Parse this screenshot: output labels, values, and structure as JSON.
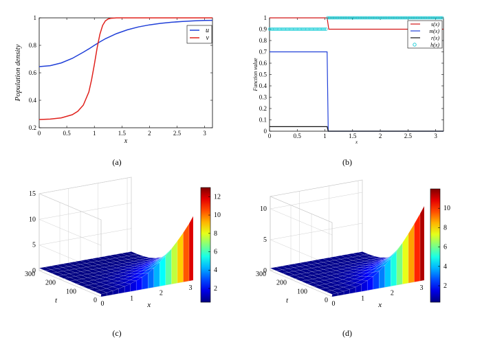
{
  "chart_data": [
    {
      "panel": "a",
      "type": "line",
      "caption": "(a)",
      "xlabel": "x",
      "ylabel": "Population  density",
      "xlim": [
        0,
        3.14159
      ],
      "ylim": [
        0.2,
        1.0
      ],
      "xticks": [
        "0",
        "0.5",
        "1",
        "1.5",
        "2",
        "2.5",
        "3"
      ],
      "xtick_values": [
        0,
        0.5,
        1,
        1.5,
        2,
        2.5,
        3
      ],
      "yticks": [
        "0.2",
        "0.4",
        "0.6",
        "0.8",
        "1"
      ],
      "ytick_values": [
        0.2,
        0.4,
        0.6,
        0.8,
        1.0
      ],
      "legend": [
        "u",
        "v"
      ],
      "series": [
        {
          "name": "u",
          "color": "#1f3fd8",
          "x": [
            0,
            0.2,
            0.4,
            0.6,
            0.8,
            0.9,
            1.0,
            1.1,
            1.2,
            1.4,
            1.6,
            1.8,
            2.0,
            2.2,
            2.4,
            2.6,
            2.8,
            3.0,
            3.14
          ],
          "y": [
            0.645,
            0.652,
            0.672,
            0.705,
            0.75,
            0.774,
            0.8,
            0.825,
            0.848,
            0.885,
            0.913,
            0.934,
            0.949,
            0.96,
            0.968,
            0.974,
            0.978,
            0.981,
            0.982
          ]
        },
        {
          "name": "v",
          "color": "#e0201b",
          "x": [
            0,
            0.2,
            0.4,
            0.6,
            0.7,
            0.8,
            0.9,
            0.95,
            1.0,
            1.05,
            1.1,
            1.15,
            1.2,
            1.25,
            1.3,
            1.4,
            1.6,
            2.0,
            2.5,
            3.14
          ],
          "y": [
            0.26,
            0.263,
            0.272,
            0.295,
            0.32,
            0.365,
            0.46,
            0.55,
            0.66,
            0.78,
            0.88,
            0.945,
            0.978,
            0.992,
            0.997,
            1.0,
            1.0,
            1.0,
            1.0,
            1.0
          ]
        }
      ]
    },
    {
      "panel": "b",
      "type": "line",
      "caption": "(b)",
      "xlabel": "x",
      "ylabel": "Function  value",
      "xlim": [
        0,
        3.14159
      ],
      "ylim": [
        0,
        1.0
      ],
      "xticks": [
        "0",
        "0.5",
        "1",
        "1.5",
        "2",
        "2.5",
        "3"
      ],
      "xtick_values": [
        0,
        0.5,
        1,
        1.5,
        2,
        2.5,
        3
      ],
      "yticks": [
        "0",
        "0.1",
        "0.2",
        "0.3",
        "0.4",
        "0.5",
        "0.6",
        "0.7",
        "0.8",
        "0.9",
        "1"
      ],
      "ytick_values": [
        0,
        0.1,
        0.2,
        0.3,
        0.4,
        0.5,
        0.6,
        0.7,
        0.8,
        0.9,
        1.0
      ],
      "legend": [
        "s(x)",
        "m(x)",
        "r(x)",
        "h(x)"
      ],
      "series": [
        {
          "name": "s(x)",
          "color": "#d21414",
          "style": "line",
          "x": [
            0,
            1.04,
            1.07,
            3.14
          ],
          "y": [
            1.0,
            1.0,
            0.9,
            0.9
          ]
        },
        {
          "name": "m(x)",
          "color": "#1f3fd8",
          "style": "line",
          "x": [
            0,
            1.04,
            1.06,
            3.14
          ],
          "y": [
            0.7,
            0.7,
            0.0,
            0.0
          ]
        },
        {
          "name": "r(x)",
          "color": "#111111",
          "style": "line",
          "x": [
            0,
            1.04,
            1.06,
            3.14
          ],
          "y": [
            0.04,
            0.04,
            0.0,
            0.0
          ]
        },
        {
          "name": "h(x)",
          "color": "#22cfd8",
          "style": "markers",
          "x_start": 0,
          "x_end": 3.14,
          "x_step": 0.03,
          "jump_at": 1.05,
          "y_before": 0.9,
          "y_after": 1.0
        }
      ]
    },
    {
      "panel": "c",
      "type": "surface",
      "caption": "(c)",
      "xlabel": "x",
      "ylabel": "t",
      "xlim": [
        0,
        3.14
      ],
      "tlim": [
        0,
        300
      ],
      "zlim": [
        0,
        15
      ],
      "xticks": [
        "0",
        "1",
        "2",
        "3"
      ],
      "xtick_values": [
        0,
        1,
        2,
        3
      ],
      "tticks": [
        "0",
        "100",
        "200",
        "300"
      ],
      "ttick_values": [
        0,
        100,
        200,
        300
      ],
      "zticks": [
        "0",
        "5",
        "10",
        "15"
      ],
      "ztick_values": [
        0,
        5,
        10,
        15
      ],
      "colorbar_ticks": [
        "2",
        "4",
        "6",
        "8",
        "10",
        "12"
      ],
      "colorbar_values": [
        2,
        4,
        6,
        8,
        10,
        12
      ],
      "colorbar_range": [
        0.5,
        13
      ],
      "x_samples": [
        0,
        0.2,
        0.4,
        0.6,
        0.8,
        1.0,
        1.2,
        1.4,
        1.6,
        1.8,
        2.0,
        2.2,
        2.4,
        2.6,
        2.8,
        3.0,
        3.14
      ],
      "z_at_t0": [
        0.5,
        0.6,
        0.75,
        0.95,
        1.2,
        1.5,
        1.9,
        2.4,
        3.0,
        3.8,
        4.7,
        5.7,
        6.9,
        8.2,
        9.6,
        11.2,
        12.5
      ],
      "z_at_tmax": 0.5
    },
    {
      "panel": "d",
      "type": "surface",
      "caption": "(d)",
      "xlabel": "x",
      "ylabel": "t",
      "xlim": [
        0,
        3.14
      ],
      "tlim": [
        0,
        300
      ],
      "zlim": [
        0,
        12
      ],
      "xticks": [
        "0",
        "1",
        "2",
        "3"
      ],
      "xtick_values": [
        0,
        1,
        2,
        3
      ],
      "tticks": [
        "0",
        "100",
        "200",
        "300"
      ],
      "ttick_values": [
        0,
        100,
        200,
        300
      ],
      "zticks": [
        "0",
        "5",
        "10"
      ],
      "ztick_values": [
        0,
        5,
        10
      ],
      "colorbar_ticks": [
        "2",
        "4",
        "6",
        "8",
        "10"
      ],
      "colorbar_values": [
        2,
        4,
        6,
        8,
        10
      ],
      "colorbar_range": [
        0.3,
        12
      ],
      "x_samples": [
        0,
        0.2,
        0.4,
        0.6,
        0.8,
        1.0,
        1.2,
        1.4,
        1.6,
        1.8,
        2.0,
        2.2,
        2.4,
        2.6,
        2.8,
        3.0,
        3.14
      ],
      "z_at_t0": [
        0.4,
        0.45,
        0.55,
        0.7,
        0.9,
        1.2,
        1.6,
        2.1,
        2.8,
        3.6,
        4.5,
        5.5,
        6.7,
        8.0,
        9.4,
        10.9,
        12.0
      ],
      "z_at_tmax": 0.4
    }
  ]
}
